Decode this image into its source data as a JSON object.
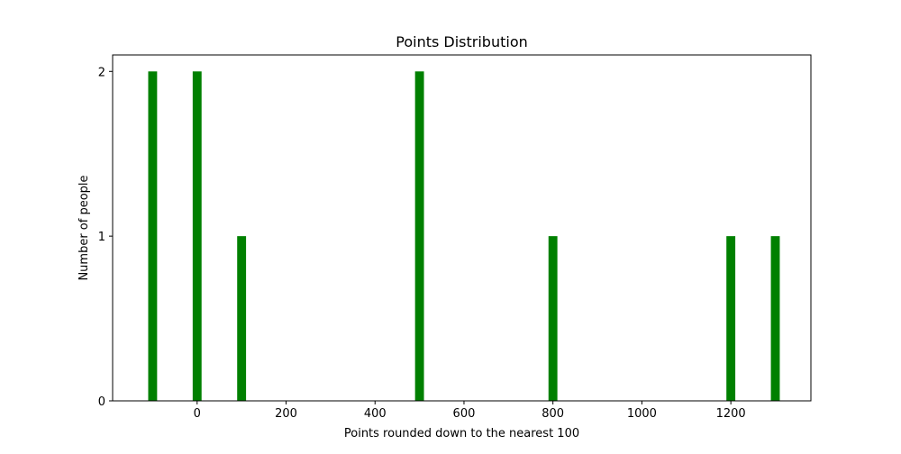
{
  "chart_data": {
    "type": "bar",
    "title": "Points Distribution",
    "xlabel": "Points rounded down to the nearest 100",
    "ylabel": "Number of people",
    "x": [
      -100,
      0,
      100,
      500,
      800,
      1200,
      1300
    ],
    "values": [
      2,
      2,
      1,
      2,
      1,
      1,
      1
    ],
    "bar_width": 20,
    "xlim": [
      -190,
      1380
    ],
    "ylim": [
      0,
      2.1
    ],
    "xticks": [
      0,
      200,
      400,
      600,
      800,
      1000,
      1200
    ],
    "yticks": [
      0,
      1,
      2
    ],
    "bar_color": "#008000",
    "grid": false
  }
}
